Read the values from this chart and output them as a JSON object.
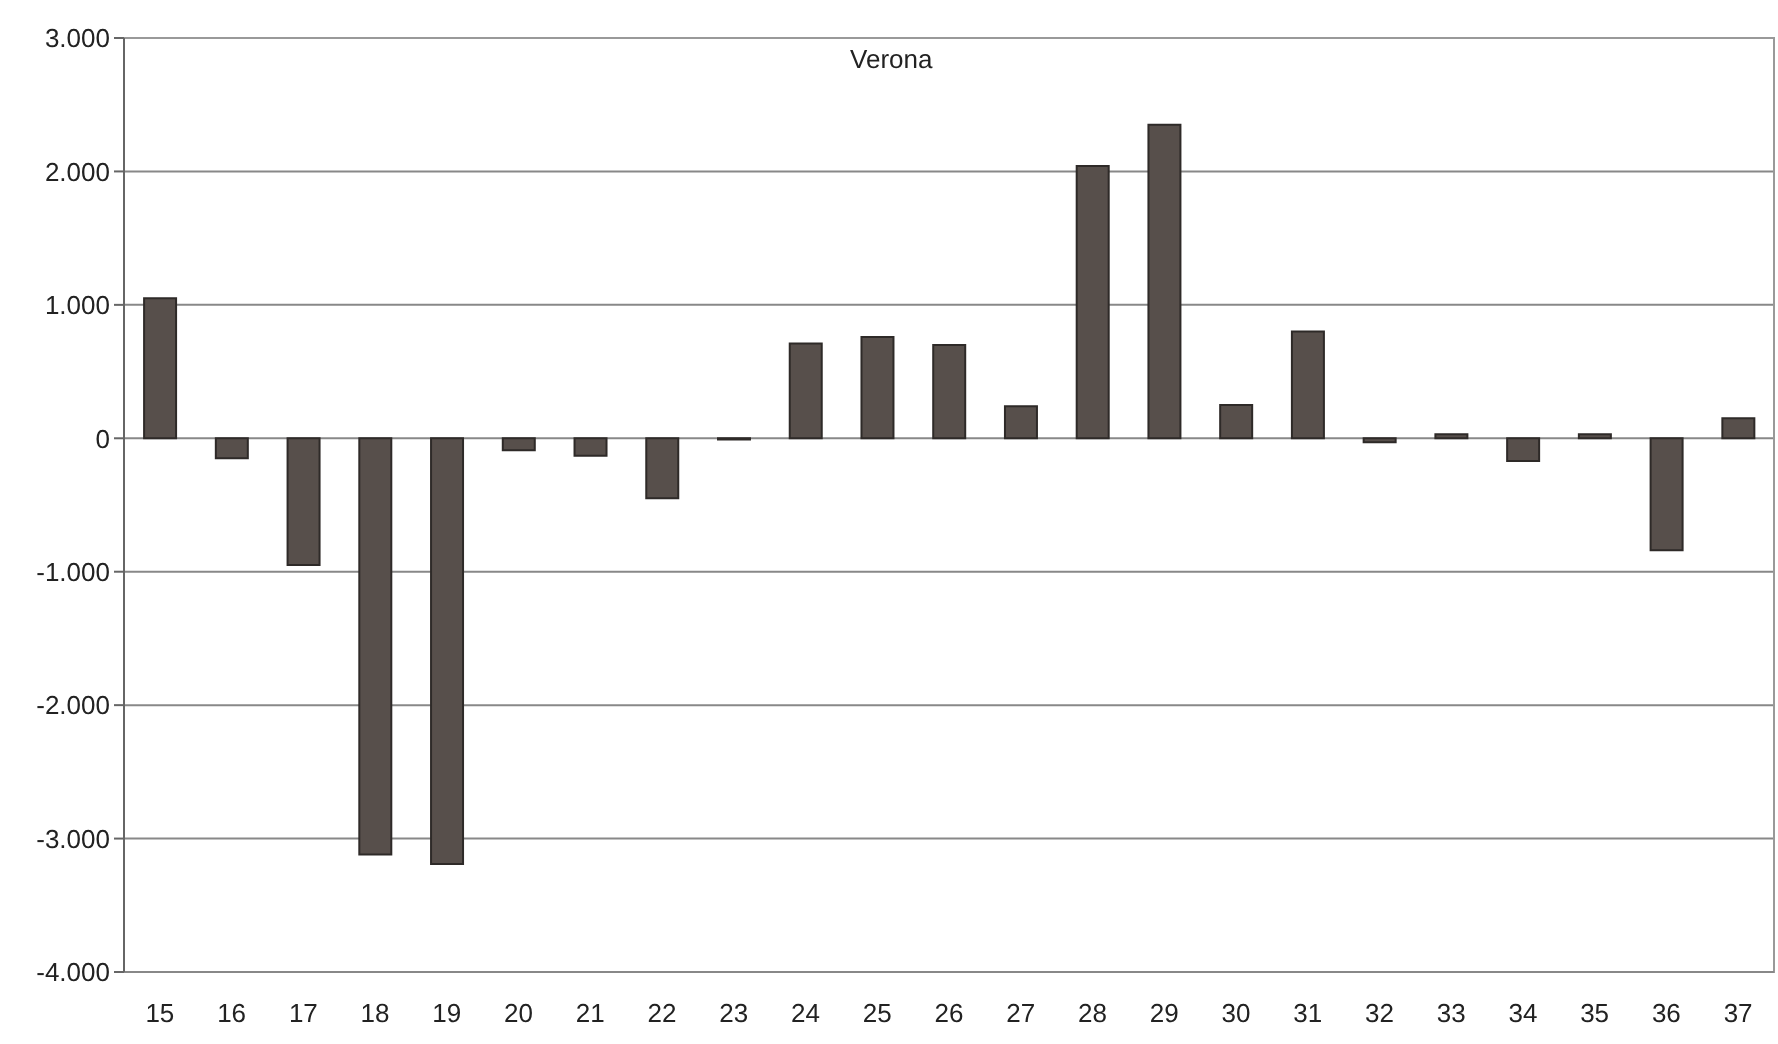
{
  "chart_data": {
    "type": "bar",
    "title": "Verona",
    "categories": [
      "15",
      "16",
      "17",
      "18",
      "19",
      "20",
      "21",
      "22",
      "23",
      "24",
      "25",
      "26",
      "27",
      "28",
      "29",
      "30",
      "31",
      "32",
      "33",
      "34",
      "35",
      "36",
      "37"
    ],
    "values": [
      1050,
      -150,
      -950,
      -3120,
      -3190,
      -90,
      -130,
      -450,
      -10,
      710,
      760,
      700,
      240,
      2040,
      2350,
      250,
      800,
      -30,
      30,
      -170,
      30,
      -840,
      150
    ],
    "color": "#574f4b",
    "ylim": [
      -4000,
      3000
    ],
    "yticks": [
      {
        "value": -4000,
        "label": "-4.000"
      },
      {
        "value": -3000,
        "label": "-3.000"
      },
      {
        "value": -2000,
        "label": "-2.000"
      },
      {
        "value": -1000,
        "label": "-1.000"
      },
      0,
      {
        "value": 1000,
        "label": "1.000"
      },
      {
        "value": 2000,
        "label": "2.000"
      },
      {
        "value": 3000,
        "label": "3.000"
      }
    ],
    "grid": "y",
    "legend": false
  }
}
